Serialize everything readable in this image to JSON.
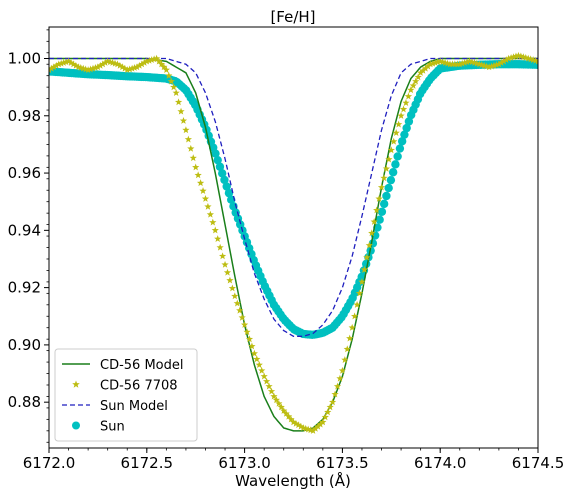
{
  "chart_data": {
    "type": "line",
    "title": "[Fe/H]",
    "xlabel": "Wavelength (Å)",
    "ylabel": "",
    "xlim": [
      6172.0,
      6174.5
    ],
    "ylim": [
      0.864,
      1.011
    ],
    "x_ticks": [
      "6172.0",
      "6172.5",
      "6173.0",
      "6173.5",
      "6174.0",
      "6174.5"
    ],
    "x_tick_values": [
      6172.0,
      6172.5,
      6173.0,
      6173.5,
      6174.0,
      6174.5
    ],
    "y_ticks": [
      "0.88",
      "0.90",
      "0.92",
      "0.94",
      "0.96",
      "0.98",
      "1.00"
    ],
    "y_tick_values": [
      0.88,
      0.9,
      0.92,
      0.94,
      0.96,
      0.98,
      1.0
    ],
    "legend_position": "lower-left",
    "series": [
      {
        "name": "CD-56 Model",
        "style": "solid-line",
        "color": "#1a7f1a",
        "x": [
          6172.0,
          6172.5,
          6172.6,
          6172.7,
          6172.75,
          6172.8,
          6172.85,
          6172.9,
          6172.95,
          6173.0,
          6173.05,
          6173.1,
          6173.15,
          6173.2,
          6173.25,
          6173.3,
          6173.35,
          6173.4,
          6173.45,
          6173.5,
          6173.55,
          6173.6,
          6173.65,
          6173.7,
          6173.75,
          6173.8,
          6173.85,
          6173.9,
          6173.95,
          6174.0,
          6174.1,
          6174.2,
          6174.5
        ],
        "y": [
          1.0,
          1.0,
          0.999,
          0.995,
          0.988,
          0.976,
          0.96,
          0.942,
          0.924,
          0.907,
          0.893,
          0.882,
          0.875,
          0.871,
          0.87,
          0.87,
          0.871,
          0.874,
          0.88,
          0.889,
          0.902,
          0.918,
          0.936,
          0.955,
          0.972,
          0.985,
          0.993,
          0.997,
          0.999,
          1.0,
          1.0,
          1.0,
          1.0
        ]
      },
      {
        "name": "CD-56 7708",
        "style": "star-markers",
        "color": "#bdbd12",
        "x": [
          6172.0,
          6172.05,
          6172.1,
          6172.15,
          6172.2,
          6172.25,
          6172.3,
          6172.35,
          6172.4,
          6172.45,
          6172.5,
          6172.55,
          6172.6,
          6172.65,
          6172.7,
          6172.75,
          6172.8,
          6172.85,
          6172.9,
          6172.95,
          6173.0,
          6173.05,
          6173.1,
          6173.15,
          6173.2,
          6173.25,
          6173.3,
          6173.35,
          6173.4,
          6173.45,
          6173.5,
          6173.55,
          6173.6,
          6173.65,
          6173.7,
          6173.75,
          6173.8,
          6173.85,
          6173.9,
          6173.95,
          6174.0,
          6174.05,
          6174.1,
          6174.15,
          6174.2,
          6174.25,
          6174.3,
          6174.35,
          6174.4,
          6174.45,
          6174.5
        ],
        "y": [
          0.996,
          0.998,
          0.999,
          0.997,
          0.996,
          0.997,
          0.999,
          0.998,
          0.996,
          0.997,
          0.999,
          1.0,
          0.996,
          0.988,
          0.975,
          0.962,
          0.951,
          0.94,
          0.928,
          0.917,
          0.907,
          0.897,
          0.889,
          0.882,
          0.877,
          0.873,
          0.871,
          0.87,
          0.873,
          0.88,
          0.891,
          0.906,
          0.922,
          0.939,
          0.955,
          0.968,
          0.98,
          0.989,
          0.995,
          0.998,
          0.999,
          0.998,
          0.998,
          0.999,
          0.998,
          0.997,
          0.998,
          1.0,
          1.001,
          1.0,
          0.999
        ]
      },
      {
        "name": "Sun Model",
        "style": "dashed-line",
        "color": "#1f1fbf",
        "x": [
          6172.0,
          6172.5,
          6172.6,
          6172.7,
          6172.75,
          6172.8,
          6172.85,
          6172.9,
          6172.95,
          6173.0,
          6173.05,
          6173.1,
          6173.15,
          6173.2,
          6173.25,
          6173.3,
          6173.35,
          6173.4,
          6173.45,
          6173.5,
          6173.55,
          6173.6,
          6173.65,
          6173.7,
          6173.75,
          6173.8,
          6173.85,
          6173.9,
          6173.95,
          6174.0,
          6174.1,
          6174.2,
          6174.5
        ],
        "y": [
          1.0,
          1.0,
          1.0,
          0.998,
          0.995,
          0.988,
          0.978,
          0.965,
          0.95,
          0.937,
          0.925,
          0.916,
          0.909,
          0.905,
          0.903,
          0.903,
          0.904,
          0.907,
          0.912,
          0.92,
          0.931,
          0.945,
          0.96,
          0.975,
          0.987,
          0.995,
          0.998,
          0.999,
          1.0,
          1.0,
          1.0,
          1.0,
          1.0
        ]
      },
      {
        "name": "Sun",
        "style": "circle-markers",
        "color": "#00c0c0",
        "x": [
          6172.0,
          6172.1,
          6172.2,
          6172.3,
          6172.4,
          6172.5,
          6172.6,
          6172.65,
          6172.7,
          6172.75,
          6172.8,
          6172.85,
          6172.9,
          6172.95,
          6173.0,
          6173.05,
          6173.1,
          6173.15,
          6173.2,
          6173.25,
          6173.3,
          6173.35,
          6173.4,
          6173.45,
          6173.5,
          6173.55,
          6173.6,
          6173.65,
          6173.7,
          6173.75,
          6173.8,
          6173.85,
          6173.9,
          6173.95,
          6174.0,
          6174.1,
          6174.2,
          6174.3,
          6174.4,
          6174.5
        ],
        "y": [
          0.9955,
          0.995,
          0.9945,
          0.9942,
          0.9938,
          0.9935,
          0.993,
          0.992,
          0.989,
          0.9835,
          0.976,
          0.967,
          0.957,
          0.947,
          0.938,
          0.929,
          0.921,
          0.914,
          0.909,
          0.9055,
          0.9038,
          0.9035,
          0.9042,
          0.906,
          0.91,
          0.916,
          0.924,
          0.934,
          0.946,
          0.958,
          0.97,
          0.98,
          0.988,
          0.993,
          0.9965,
          0.9975,
          0.9978,
          0.998,
          0.998,
          0.9978
        ]
      }
    ]
  }
}
